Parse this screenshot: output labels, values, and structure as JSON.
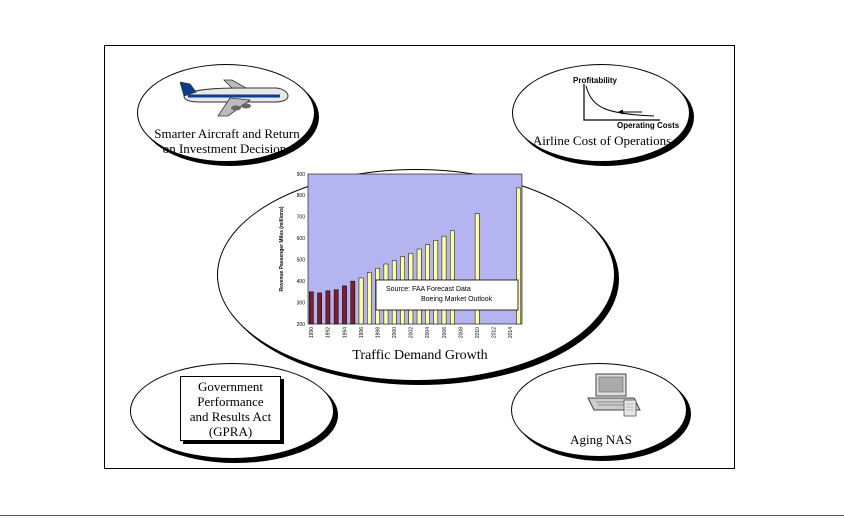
{
  "ovals": {
    "aircraft": {
      "caption_line1": "Smarter Aircraft and Return",
      "caption_line2": "on Investment Decisions",
      "icon": "airplane-icon"
    },
    "airline_cost": {
      "caption": "Airline Cost of Operations",
      "curve_y_label": "Profitability",
      "curve_x_label": "Operating Costs",
      "icon": "cost-curve-icon"
    },
    "traffic": {
      "caption": "Traffic Demand Growth"
    },
    "gpra": {
      "line1": "Government",
      "line2": "Performance",
      "line3": "and Results Act",
      "line4": "(GPRA)"
    },
    "aging_nas": {
      "caption": "Aging NAS",
      "icon": "computer-terminal-icon"
    }
  },
  "chart_data": {
    "type": "bar",
    "ylabel": "Revenue Passenger Miles (millions)",
    "ylim": [
      200,
      900
    ],
    "yticks": [
      200,
      300,
      400,
      500,
      600,
      700,
      800,
      900
    ],
    "xticks": [
      "1990",
      "1992",
      "1994",
      "1996",
      "1998",
      "2000",
      "2002",
      "2004",
      "2006",
      "2008",
      "2010",
      "2012",
      "2014"
    ],
    "x": [
      1990,
      1991,
      1992,
      1993,
      1994,
      1995,
      1996,
      1997,
      1998,
      1999,
      2000,
      2001,
      2002,
      2003,
      2004,
      2005,
      2006,
      2007,
      2010,
      2015
    ],
    "values": [
      350,
      345,
      355,
      360,
      378,
      400,
      415,
      440,
      460,
      480,
      495,
      515,
      530,
      550,
      570,
      590,
      610,
      635,
      715,
      835
    ],
    "series": [
      {
        "name": "FAA Forecast Data",
        "x_range": [
          1990,
          1995
        ],
        "color": "#7a1f2b"
      },
      {
        "name": "Boeing Market Outlook",
        "x_range": [
          1996,
          2015
        ],
        "color": "#ffff99"
      }
    ],
    "background": "#b4b4f0",
    "legend": {
      "prefix": "Source:",
      "placement": "lower-right"
    },
    "grid": false
  }
}
